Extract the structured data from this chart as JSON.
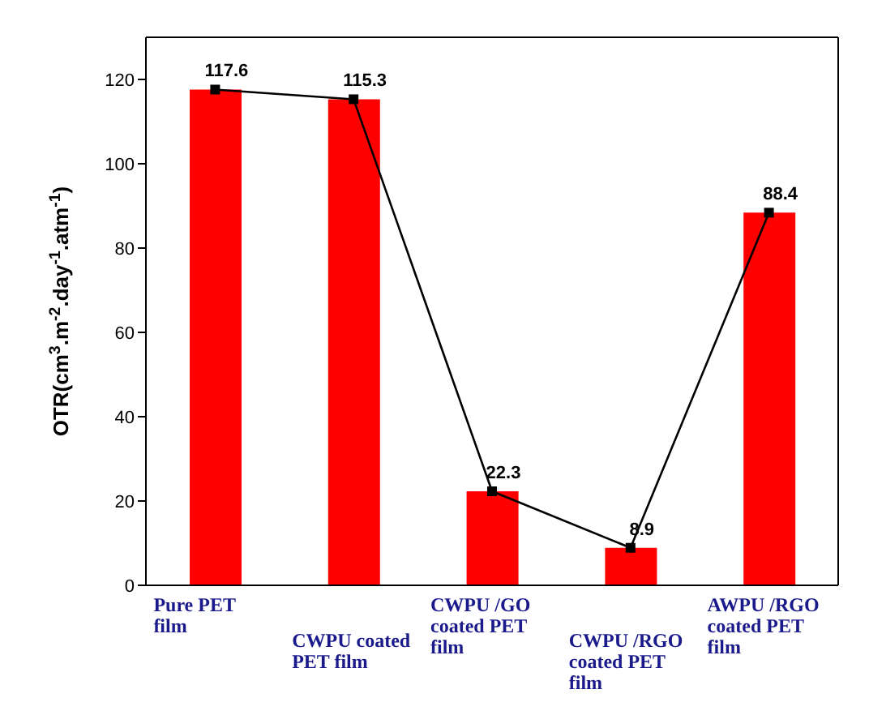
{
  "chart_data": {
    "type": "bar",
    "ylabel": "OTR(cm$^{3}$.m$^{-2}$.day$^{-1}$.atm$^{-1}$)",
    "categories": [
      "Pure PET film",
      "CWPU coated PET film",
      "CWPU /GO coated PET film",
      "CWPU /RGO coated PET  film",
      "AWPU /RGO coated PET film"
    ],
    "series": [
      {
        "color": "#ff0000",
        "values": [
          117.6,
          115.3,
          22.3,
          8.9,
          88.4
        ]
      },
      {
        "type": "line",
        "color": "#000000",
        "marker": "square",
        "values": [
          117.6,
          115.3,
          22.3,
          8.9,
          88.4
        ],
        "value_labels": [
          "117.6",
          "115.3",
          "22.3",
          "8.9",
          "88.4"
        ]
      }
    ],
    "ylim": [
      0,
      130
    ],
    "yticks": [
      0,
      20,
      40,
      60,
      80,
      100,
      120
    ],
    "grid": false,
    "legend": false
  }
}
